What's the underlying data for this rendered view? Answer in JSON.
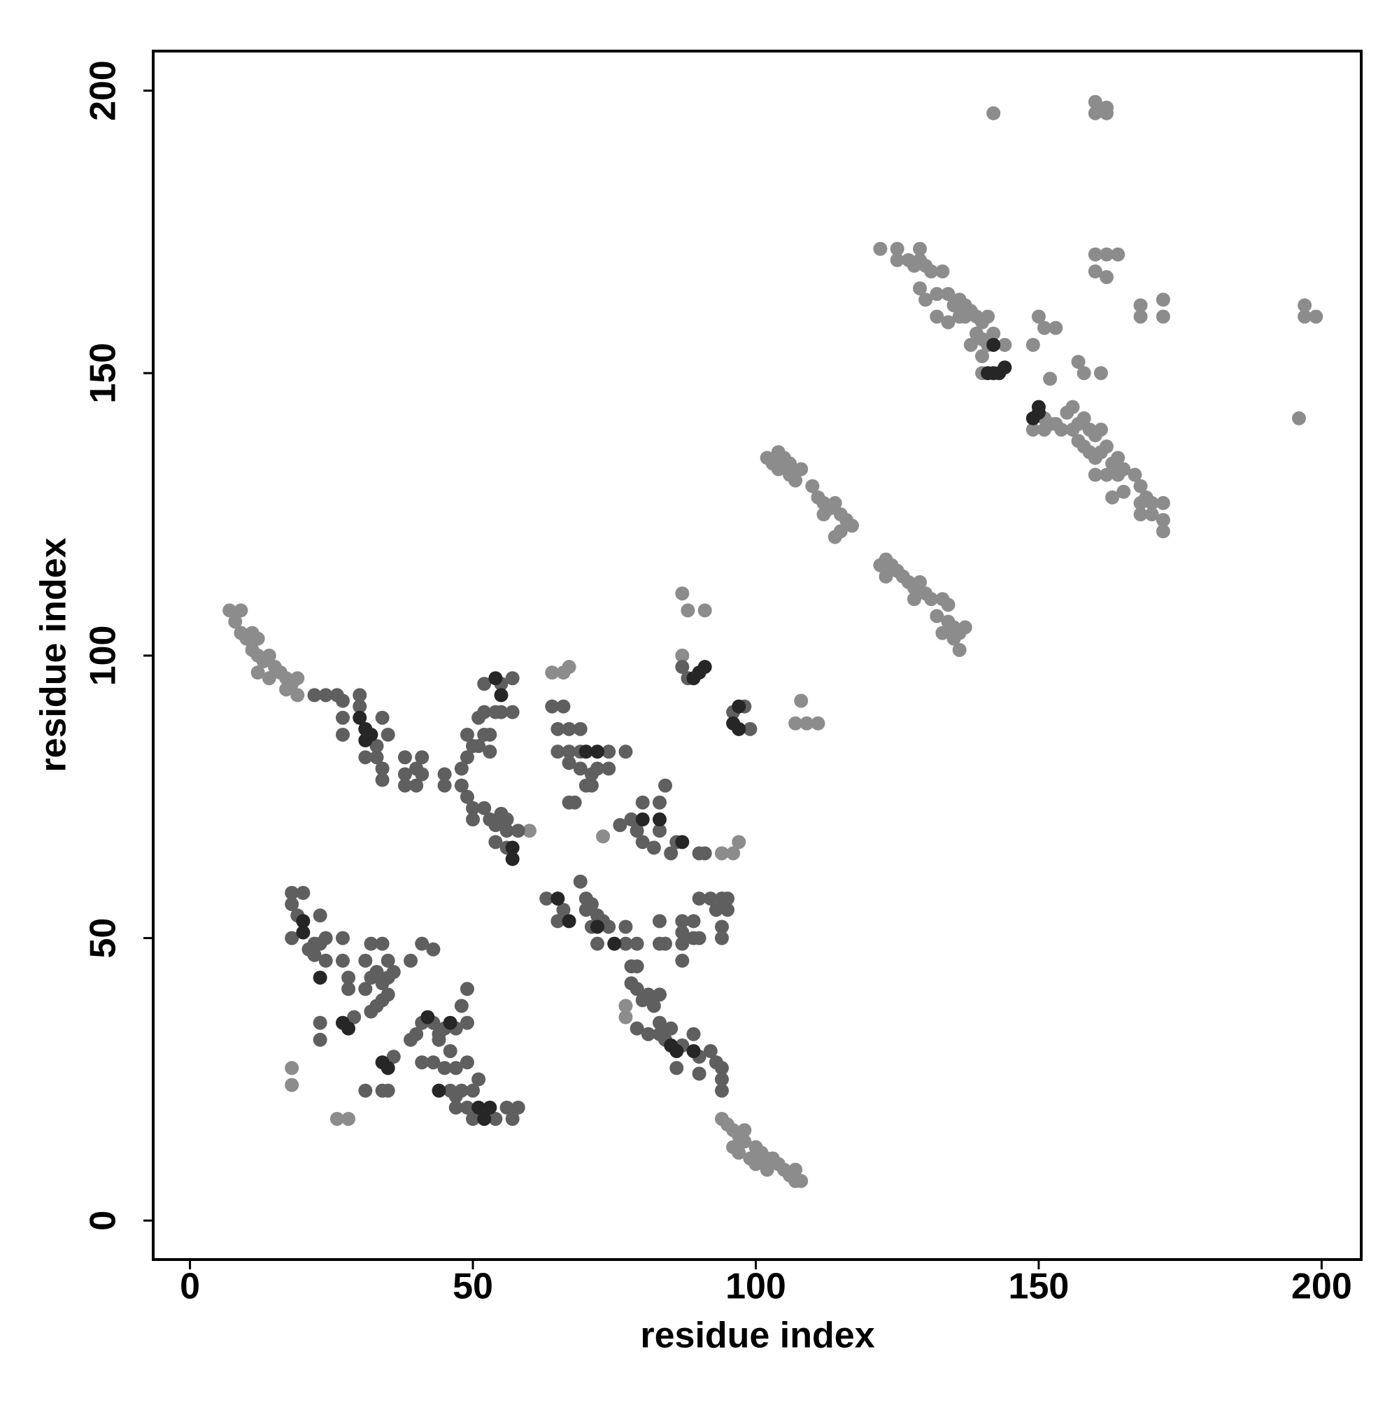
{
  "chart_data": {
    "type": "scatter",
    "xlabel": "residue index",
    "ylabel": "residue index",
    "xlim": [
      -6.5,
      207
    ],
    "ylim": [
      -6.9,
      207
    ],
    "xticks": [
      0,
      50,
      100,
      150,
      200
    ],
    "yticks": [
      0,
      50,
      100,
      150,
      200
    ],
    "grid": false,
    "series": [
      {
        "color": "#8c8c8c",
        "x": [
          122,
          125,
          125,
          127,
          129,
          129,
          130,
          128,
          131,
          133,
          129,
          130,
          132,
          134,
          135,
          136,
          137,
          137,
          138,
          139,
          140,
          141,
          136,
          139,
          140,
          142,
          138,
          141,
          144,
          140,
          140,
          132,
          134,
          142,
          160,
          160,
          162,
          162,
          160,
          162,
          164,
          160,
          162,
          168,
          168,
          172,
          172,
          197,
          199,
          197,
          196,
          149,
          150,
          151,
          153,
          152,
          157,
          158,
          161,
          151,
          152,
          149,
          151,
          153,
          155,
          156,
          157,
          158,
          159,
          160,
          161,
          157,
          158,
          159,
          160,
          161,
          162,
          163,
          164,
          165,
          160,
          162,
          164,
          163,
          165,
          167,
          168,
          168,
          169,
          170,
          172,
          168,
          170,
          172,
          172,
          156,
          154,
          102,
          103,
          104,
          105,
          106,
          104,
          106,
          108,
          107,
          110,
          111,
          112,
          113,
          114,
          115,
          116,
          117,
          115,
          112,
          114,
          122,
          123,
          124,
          125,
          123,
          126,
          127,
          128,
          129,
          130,
          128,
          131,
          133,
          134,
          132,
          134,
          135,
          133,
          135,
          136,
          136,
          137,
          7,
          9,
          8,
          9,
          10,
          11,
          12,
          11,
          12,
          13,
          14,
          15,
          16,
          17,
          18,
          19,
          12,
          14,
          17,
          19,
          87,
          88,
          91,
          108,
          107,
          109,
          111,
          87,
          94,
          95,
          96,
          97,
          98,
          96,
          97,
          99,
          100,
          101,
          102,
          103,
          104,
          105,
          106,
          107,
          107,
          108,
          98,
          100,
          102,
          18,
          18,
          26,
          28,
          77,
          77,
          64,
          66,
          67,
          94,
          96,
          97,
          73,
          60
        ],
        "y": [
          172,
          172,
          170,
          170,
          172,
          170,
          169,
          169,
          168,
          168,
          165,
          163,
          164,
          164,
          162,
          163,
          162,
          160,
          161,
          160,
          159,
          160,
          160,
          157,
          156,
          157,
          155,
          155,
          155,
          153,
          150,
          160,
          159,
          196,
          198,
          196,
          196,
          197,
          171,
          171,
          171,
          168,
          167,
          162,
          160,
          163,
          160,
          162,
          160,
          160,
          142,
          155,
          160,
          158,
          158,
          149,
          152,
          150,
          150,
          142,
          141,
          140,
          140,
          141,
          143,
          144,
          141,
          142,
          140,
          139,
          140,
          138,
          137,
          136,
          135,
          136,
          137,
          134,
          135,
          133,
          132,
          132,
          132,
          128,
          129,
          132,
          130,
          127,
          128,
          127,
          127,
          125,
          125,
          124,
          122,
          140,
          140,
          135,
          134,
          136,
          135,
          134,
          133,
          132,
          133,
          131,
          130,
          128,
          127,
          126,
          127,
          125,
          124,
          123,
          122,
          125,
          121,
          116,
          117,
          116,
          115,
          114,
          114,
          113,
          112,
          113,
          111,
          110,
          110,
          110,
          109,
          107,
          106,
          105,
          104,
          103,
          101,
          104,
          105,
          108,
          108,
          106,
          104,
          103,
          104,
          103,
          101,
          100,
          99,
          100,
          98,
          97,
          96,
          95,
          96,
          97,
          96,
          94,
          93,
          111,
          108,
          108,
          92,
          88,
          88,
          88,
          100,
          18,
          17,
          16,
          15,
          14,
          13,
          12,
          11,
          10,
          12,
          9,
          11,
          10,
          9,
          8,
          9,
          7,
          7,
          16,
          13,
          11,
          27,
          24,
          18,
          18,
          38,
          36,
          97,
          97,
          98,
          65,
          65,
          67,
          68,
          69
        ]
      },
      {
        "color": "#5f5f5f",
        "x": [
          22,
          24,
          26,
          27,
          30,
          30,
          27,
          34,
          27,
          33,
          35,
          31,
          33,
          34,
          34,
          38,
          38,
          38,
          40,
          41,
          40,
          41,
          45,
          45,
          49,
          50,
          49,
          48,
          48,
          49,
          50,
          50,
          51,
          52,
          51,
          52,
          53,
          53,
          52,
          55,
          55,
          54,
          57,
          57,
          52,
          53,
          54,
          55,
          56,
          54,
          56,
          58,
          56,
          64,
          66,
          65,
          67,
          69,
          65,
          67,
          69,
          74,
          77,
          67,
          69,
          71,
          72,
          74,
          70,
          71,
          67,
          68,
          76,
          78,
          79,
          80,
          82,
          83,
          85,
          86,
          90,
          91,
          80,
          83,
          84,
          87,
          88,
          96,
          98,
          99,
          63,
          66,
          65,
          69,
          70,
          70,
          71,
          72,
          71,
          73,
          74,
          72,
          77,
          77,
          78,
          78,
          79,
          79,
          79,
          80,
          81,
          83,
          82,
          79,
          81,
          83,
          83,
          84,
          85,
          87,
          89,
          90,
          92,
          93,
          90,
          94,
          94,
          94,
          86,
          87,
          89,
          87,
          87,
          84,
          83,
          83,
          87,
          89,
          90,
          90,
          92,
          94,
          93,
          95,
          94,
          94,
          95,
          18,
          20,
          18,
          19,
          18,
          21,
          22,
          23,
          24,
          23,
          24,
          23,
          22,
          27,
          27,
          28,
          29,
          28,
          31,
          32,
          31,
          32,
          33,
          34,
          35,
          35,
          34,
          36,
          35,
          34,
          33,
          32,
          31,
          36,
          34,
          35,
          39,
          40,
          41,
          43,
          44,
          45,
          47,
          44,
          41,
          43,
          45,
          46,
          49,
          46,
          47,
          48,
          47,
          49,
          50,
          54,
          56,
          57,
          58,
          50,
          48,
          49,
          39,
          41,
          43,
          47,
          49,
          51,
          23
        ],
        "y": [
          93,
          93,
          93,
          92,
          93,
          91,
          89,
          89,
          86,
          84,
          86,
          82,
          82,
          80,
          78,
          82,
          79,
          77,
          80,
          82,
          77,
          79,
          79,
          77,
          86,
          84,
          82,
          80,
          77,
          75,
          73,
          71,
          89,
          86,
          84,
          90,
          86,
          83,
          95,
          95,
          90,
          90,
          96,
          90,
          73,
          71,
          70,
          72,
          71,
          67,
          66,
          69,
          69,
          91,
          91,
          87,
          87,
          87,
          83,
          83,
          83,
          83,
          83,
          81,
          80,
          79,
          80,
          80,
          77,
          77,
          74,
          74,
          70,
          71,
          69,
          67,
          66,
          69,
          65,
          67,
          65,
          65,
          74,
          74,
          77,
          98,
          96,
          90,
          91,
          87,
          57,
          55,
          53,
          60,
          57,
          55,
          56,
          54,
          52,
          53,
          52,
          49,
          52,
          49,
          45,
          42,
          45,
          49,
          41,
          39,
          40,
          40,
          38,
          34,
          33,
          33,
          35,
          32,
          34,
          31,
          33,
          29,
          30,
          28,
          26,
          27,
          25,
          23,
          27,
          53,
          53,
          51,
          49,
          49,
          49,
          53,
          46,
          50,
          50,
          57,
          57,
          57,
          55,
          55,
          52,
          50,
          57,
          58,
          58,
          56,
          54,
          50,
          48,
          47,
          49,
          50,
          54,
          46,
          32,
          49,
          50,
          46,
          43,
          36,
          41,
          41,
          43,
          46,
          49,
          44,
          42,
          43,
          46,
          49,
          44,
          40,
          39,
          38,
          37,
          23,
          29,
          23,
          23,
          32,
          33,
          35,
          35,
          33,
          34,
          34,
          32,
          28,
          28,
          27,
          30,
          35,
          23,
          22,
          23,
          20,
          20,
          18,
          18,
          20,
          18,
          20,
          23,
          38,
          41,
          46,
          49,
          48,
          27,
          28,
          25,
          35
        ]
      },
      {
        "color": "#262626",
        "x": [
          141,
          142,
          143,
          144,
          150,
          149,
          150,
          142,
          89,
          90,
          91,
          97,
          96,
          97,
          30,
          31,
          32,
          31,
          54,
          55,
          57,
          57,
          20,
          20,
          23,
          27,
          28,
          35,
          34,
          53,
          52,
          51,
          65,
          67,
          72,
          75,
          85,
          86,
          89,
          80,
          83,
          87,
          70,
          72,
          42,
          46,
          44
        ],
        "y": [
          150,
          150,
          150,
          151,
          144,
          142,
          143,
          155,
          96,
          97,
          98,
          91,
          88,
          87,
          89,
          87,
          86,
          85,
          96,
          93,
          66,
          64,
          53,
          51,
          43,
          35,
          34,
          27,
          28,
          20,
          18,
          20,
          57,
          53,
          52,
          49,
          31,
          30,
          30,
          71,
          71,
          67,
          83,
          83,
          36,
          35,
          23
        ]
      }
    ]
  }
}
